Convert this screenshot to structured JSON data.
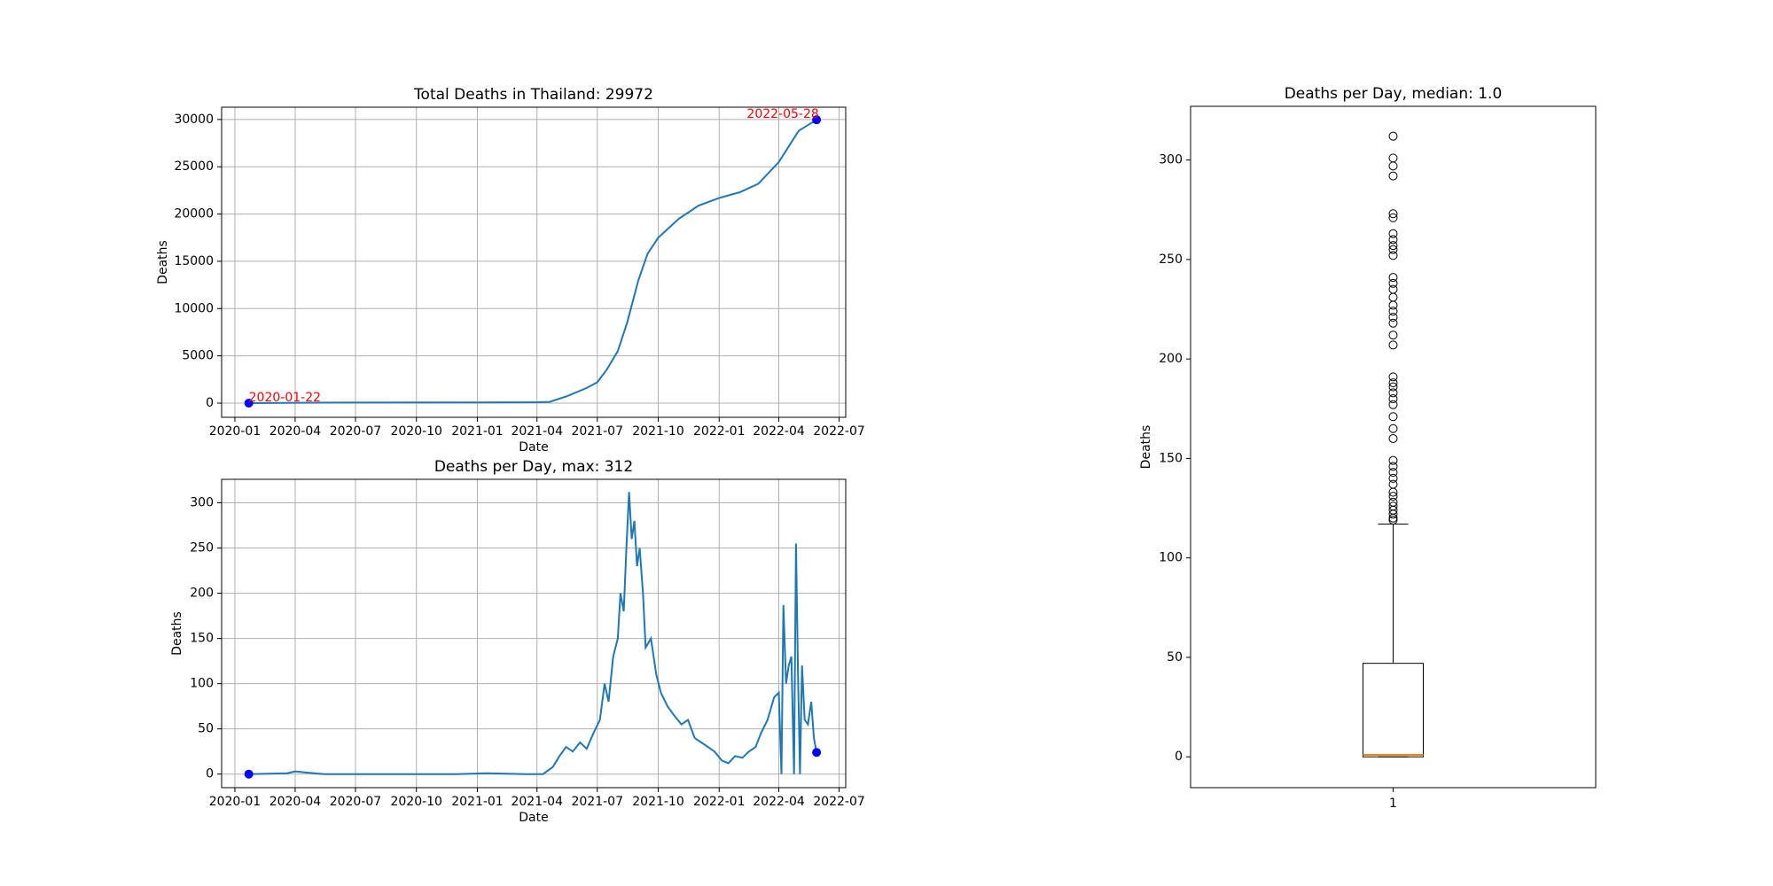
{
  "chart_data": [
    {
      "type": "line",
      "title": "Total Deaths in Thailand: 29972",
      "xlabel": "Date",
      "ylabel": "Deaths",
      "x": [
        "2020-01-22",
        "2020-06-01",
        "2021-01-01",
        "2021-04-01",
        "2021-04-20",
        "2021-05-15",
        "2021-06-15",
        "2021-07-01",
        "2021-07-15",
        "2021-08-01",
        "2021-08-15",
        "2021-09-01",
        "2021-09-15",
        "2021-10-01",
        "2021-11-01",
        "2021-12-01",
        "2022-01-01",
        "2022-02-01",
        "2022-03-01",
        "2022-04-01",
        "2022-05-01",
        "2022-05-28"
      ],
      "values": [
        0,
        57,
        70,
        94,
        130,
        700,
        1600,
        2200,
        3500,
        5500,
        8500,
        13000,
        15800,
        17500,
        19500,
        20900,
        21700,
        22300,
        23200,
        25500,
        28800,
        29972
      ],
      "color": "#1f77b4",
      "endpoint_color": "blue",
      "endpoint_labels": true,
      "label_color": "red",
      "xlim": [
        "2019-12-12",
        "2022-07-11"
      ],
      "xticks": [
        "2020-01",
        "2020-04",
        "2020-07",
        "2020-10",
        "2021-01",
        "2021-04",
        "2021-07",
        "2021-10",
        "2022-01",
        "2022-04",
        "2022-07"
      ],
      "ylim": [
        -1500,
        31300
      ],
      "yticks": [
        0,
        5000,
        10000,
        15000,
        20000,
        25000,
        30000
      ],
      "grid": true
    },
    {
      "type": "line",
      "title": "Deaths per Day, max: 312",
      "xlabel": "Date",
      "ylabel": "Deaths",
      "x": [
        "2020-01-22",
        "2020-03-20",
        "2020-04-01",
        "2020-04-15",
        "2020-05-15",
        "2020-08-01",
        "2020-12-01",
        "2021-01-15",
        "2021-03-15",
        "2021-04-10",
        "2021-04-25",
        "2021-05-05",
        "2021-05-15",
        "2021-05-25",
        "2021-06-05",
        "2021-06-15",
        "2021-06-25",
        "2021-07-05",
        "2021-07-12",
        "2021-07-18",
        "2021-07-25",
        "2021-08-01",
        "2021-08-05",
        "2021-08-10",
        "2021-08-14",
        "2021-08-18",
        "2021-08-22",
        "2021-08-26",
        "2021-08-30",
        "2021-09-03",
        "2021-09-08",
        "2021-09-12",
        "2021-09-20",
        "2021-09-28",
        "2021-10-05",
        "2021-10-15",
        "2021-10-25",
        "2021-11-05",
        "2021-11-15",
        "2021-11-25",
        "2021-12-05",
        "2021-12-15",
        "2021-12-25",
        "2022-01-05",
        "2022-01-15",
        "2022-01-25",
        "2022-02-05",
        "2022-02-15",
        "2022-02-25",
        "2022-03-05",
        "2022-03-15",
        "2022-03-25",
        "2022-04-01",
        "2022-04-05",
        "2022-04-08",
        "2022-04-12",
        "2022-04-16",
        "2022-04-20",
        "2022-04-24",
        "2022-04-27",
        "2022-04-30",
        "2022-05-03",
        "2022-05-06",
        "2022-05-10",
        "2022-05-15",
        "2022-05-20",
        "2022-05-24",
        "2022-05-28"
      ],
      "values": [
        0,
        1,
        3,
        2,
        0,
        0,
        0,
        1,
        0,
        0,
        8,
        20,
        30,
        25,
        35,
        28,
        45,
        60,
        100,
        80,
        130,
        150,
        200,
        180,
        250,
        312,
        260,
        280,
        230,
        250,
        200,
        140,
        150,
        110,
        90,
        75,
        65,
        55,
        60,
        40,
        35,
        30,
        25,
        15,
        12,
        20,
        18,
        25,
        30,
        45,
        60,
        85,
        90,
        0,
        187,
        100,
        120,
        130,
        0,
        255,
        110,
        0,
        120,
        60,
        55,
        80,
        40,
        24
      ],
      "color": "#1f77b4",
      "endpoint_color": "blue",
      "endpoint_labels": false,
      "xlim": [
        "2019-12-12",
        "2022-07-11"
      ],
      "xticks": [
        "2020-01",
        "2020-04",
        "2020-07",
        "2020-10",
        "2021-01",
        "2021-04",
        "2021-07",
        "2021-10",
        "2022-01",
        "2022-04",
        "2022-07"
      ],
      "ylim": [
        -15,
        326
      ],
      "yticks": [
        0,
        50,
        100,
        150,
        200,
        250,
        300
      ],
      "grid": true
    },
    {
      "type": "box",
      "title": "Deaths per Day, median: 1.0",
      "ylabel": "Deaths",
      "categories": [
        "1"
      ],
      "whislo": 0,
      "q1": 0,
      "median": 1,
      "q3": 47,
      "whishi": 117,
      "fliers": [
        312,
        301,
        297,
        292,
        273,
        271,
        263,
        260,
        257,
        255,
        252,
        241,
        238,
        235,
        231,
        227,
        224,
        221,
        218,
        212,
        207,
        191,
        188,
        186,
        183,
        180,
        177,
        171,
        165,
        160,
        149,
        146,
        143,
        140,
        137,
        133,
        131,
        128,
        126,
        124,
        122,
        120,
        119
      ],
      "median_color": "#ff7f0e",
      "ylim": [
        -15.5,
        327
      ],
      "yticks": [
        0,
        50,
        100,
        150,
        200,
        250,
        300
      ],
      "grid": false
    }
  ]
}
